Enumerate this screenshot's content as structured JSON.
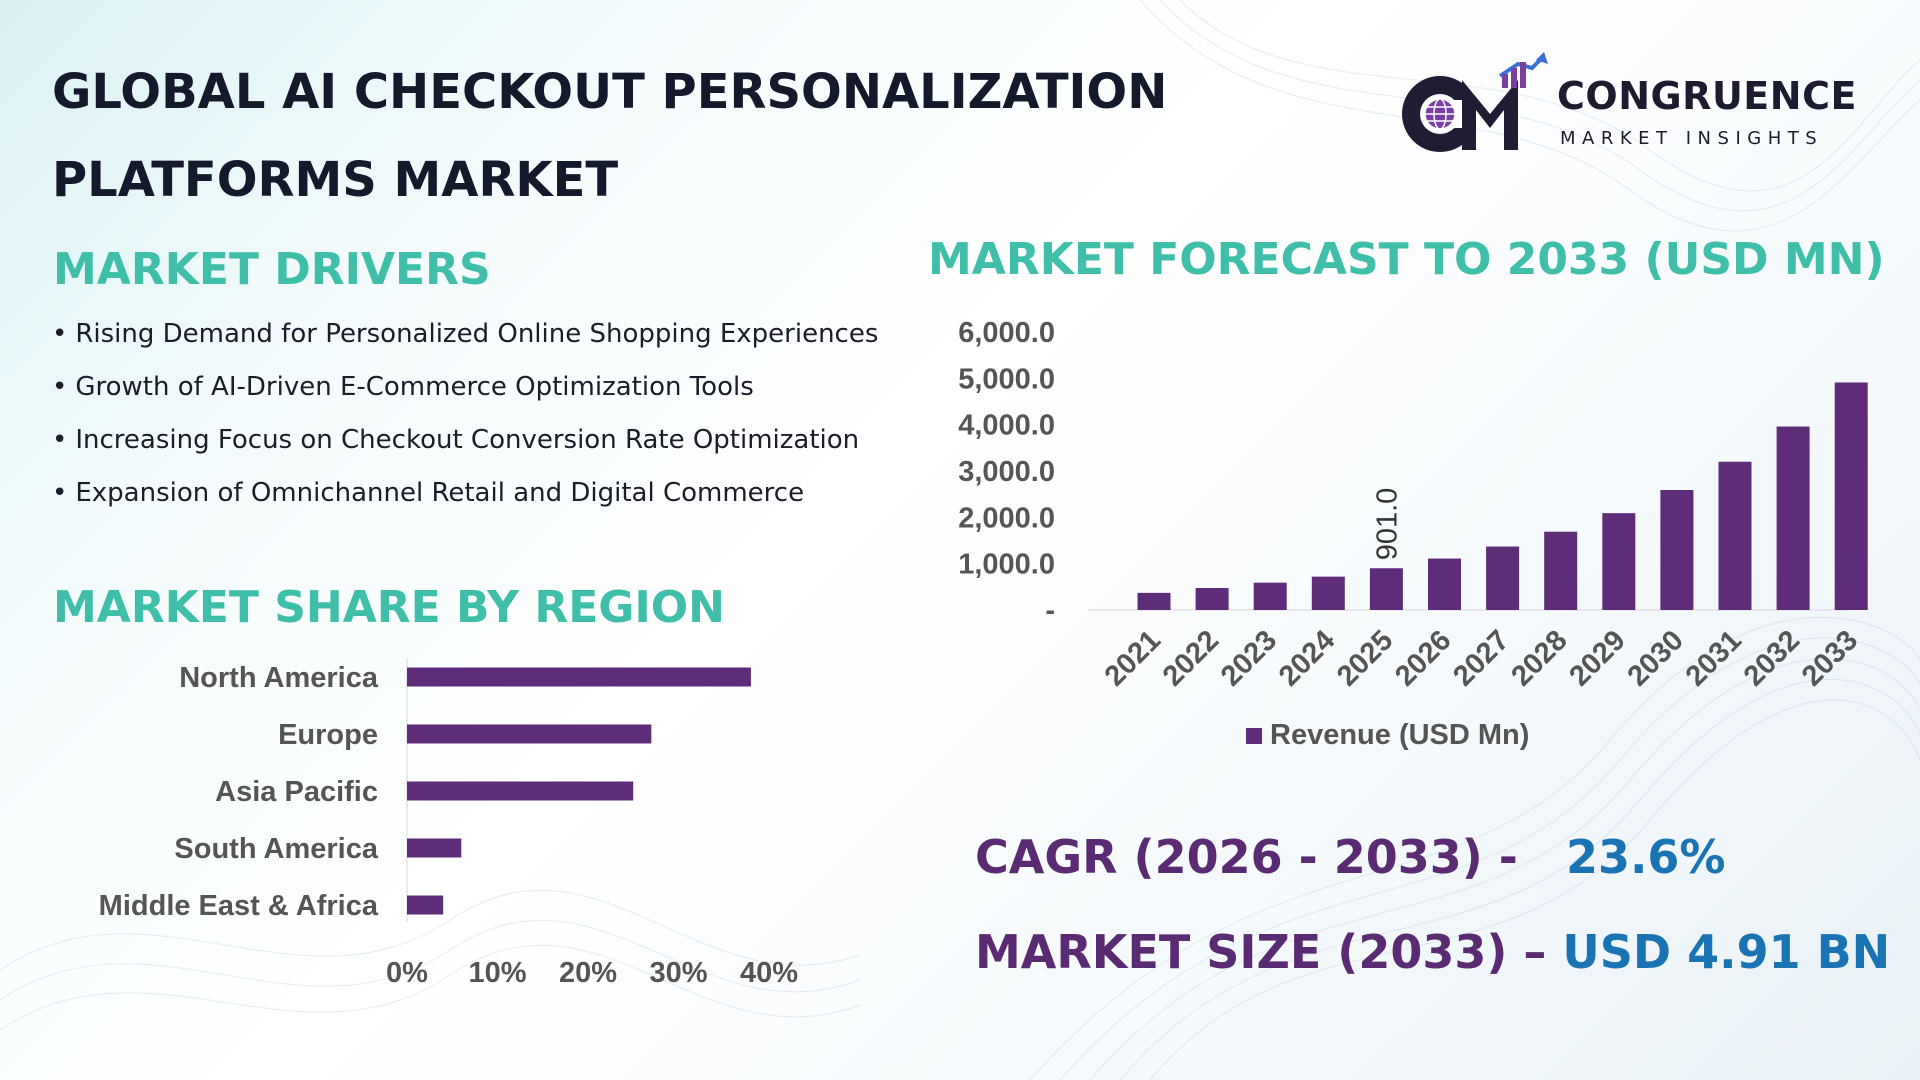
{
  "title": {
    "line1": "GLOBAL AI CHECKOUT PERSONALIZATION",
    "line2": "PLATFORMS MARKET"
  },
  "logo": {
    "name": "CONGRUENCE",
    "subtitle": "MARKET INSIGHTS",
    "monogram": "CM"
  },
  "drivers": {
    "heading": "MARKET DRIVERS",
    "items": [
      "Rising Demand for Personalized Online Shopping Experiences",
      "Growth of AI-Driven E-Commerce Optimization Tools",
      "Increasing Focus on Checkout Conversion Rate Optimization",
      "Expansion of Omnichannel Retail and Digital Commerce"
    ],
    "bullet": "•"
  },
  "region": {
    "heading": "MARKET SHARE BY REGION"
  },
  "forecast": {
    "heading": "MARKET FORECAST TO 2033 (USD MN)"
  },
  "kpis": {
    "cagr_label": "CAGR (2026 - 2033) -",
    "cagr_value": "23.6%",
    "size_label": "MARKET SIZE (2033) –",
    "size_value": "USD 4.91 BN"
  },
  "colors": {
    "bar": "#5e2c78",
    "heading_teal": "#3fbfa9",
    "kpi_label": "#5a2a72",
    "kpi_value": "#1a73b3",
    "title": "#141a2b",
    "axis_text": "#555555"
  },
  "chart_data": [
    {
      "type": "bar",
      "orientation": "horizontal",
      "categories": [
        "North America",
        "Europe",
        "Asia Pacific",
        "South America",
        "Middle East & Africa"
      ],
      "values": [
        38,
        27,
        25,
        6,
        4
      ],
      "xlim": [
        0,
        40
      ],
      "xticks": [
        "0%",
        "10%",
        "20%",
        "30%",
        "40%"
      ],
      "grid": false,
      "legend": "none"
    },
    {
      "type": "bar",
      "categories": [
        "2021",
        "2022",
        "2023",
        "2024",
        "2025",
        "2026",
        "2027",
        "2028",
        "2029",
        "2030",
        "2031",
        "2032",
        "2033"
      ],
      "series": [
        {
          "name": "Revenue (USD Mn)",
          "values": [
            370,
            475,
            590,
            720,
            901.0,
            1110,
            1370,
            1690,
            2090,
            2590,
            3200,
            3960,
            4910
          ]
        }
      ],
      "ylim": [
        0,
        6000
      ],
      "yticks": [
        "-",
        "1,000.0",
        "2,000.0",
        "3,000.0",
        "4,000.0",
        "5,000.0",
        "6,000.0"
      ],
      "data_labels": [
        {
          "category": "2025",
          "text": "901.0"
        }
      ],
      "legend": "bottom",
      "grid": false
    }
  ]
}
